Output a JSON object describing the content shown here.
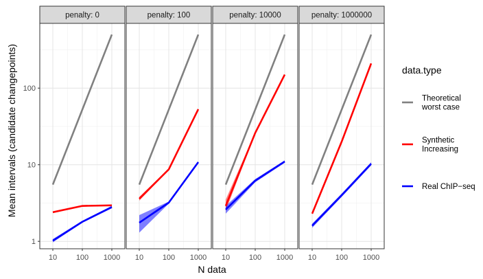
{
  "chart_data": {
    "type": "line",
    "xlabel": "N data",
    "ylabel": "Mean intervals (candidate changepoints)",
    "x_scale": "log10",
    "y_scale": "log10",
    "xlim": [
      10,
      1000
    ],
    "ylim": [
      0.8,
      700
    ],
    "x_ticks": [
      10,
      100,
      1000
    ],
    "x_tick_labels": [
      "10",
      "100",
      "1000"
    ],
    "y_ticks": [
      1,
      10,
      100
    ],
    "y_tick_labels": [
      "1",
      "10",
      "100"
    ],
    "grid": true,
    "legend_title": "data.type",
    "legend_position": "right",
    "series_meta": [
      {
        "name": "Theoretical worst case",
        "label_lines": [
          "Theoretical",
          "worst case"
        ],
        "color": "#808080"
      },
      {
        "name": "Synthetic Increasing",
        "label_lines": [
          "Synthetic",
          "Increasing"
        ],
        "color": "#ff0000"
      },
      {
        "name": "Real ChIP−seq",
        "label_lines": [
          "Real ChIP−seq"
        ],
        "color": "#0000ff"
      }
    ],
    "panels": [
      {
        "strip": "penalty: 0",
        "series": [
          {
            "name": "Theoretical worst case",
            "x": [
              10,
              1000
            ],
            "y": [
              5.5,
              500
            ]
          },
          {
            "name": "Synthetic Increasing",
            "x": [
              10,
              100,
              1000
            ],
            "y": [
              2.4,
              2.9,
              2.95
            ],
            "lo": [
              2.35,
              2.85,
              2.9
            ],
            "hi": [
              2.45,
              2.95,
              3.0
            ]
          },
          {
            "name": "Real ChIP−seq",
            "x": [
              10,
              100,
              1000
            ],
            "y": [
              1.02,
              1.8,
              2.8
            ],
            "lo": [
              0.97,
              1.75,
              2.7
            ],
            "hi": [
              1.07,
              1.85,
              2.9
            ]
          }
        ]
      },
      {
        "strip": "penalty: 100",
        "series": [
          {
            "name": "Theoretical worst case",
            "x": [
              10,
              1000
            ],
            "y": [
              5.5,
              500
            ]
          },
          {
            "name": "Synthetic Increasing",
            "x": [
              10,
              100,
              1000
            ],
            "y": [
              3.6,
              8.7,
              53
            ],
            "lo": [
              3.4,
              8.5,
              52
            ],
            "hi": [
              3.8,
              8.9,
              54
            ]
          },
          {
            "name": "Real ChIP−seq",
            "x": [
              10,
              100,
              1000
            ],
            "y": [
              1.75,
              3.2,
              10.8
            ],
            "lo": [
              1.3,
              3.1,
              10.5
            ],
            "hi": [
              2.2,
              3.3,
              11.1
            ]
          }
        ]
      },
      {
        "strip": "penalty: 10000",
        "series": [
          {
            "name": "Theoretical worst case",
            "x": [
              10,
              1000
            ],
            "y": [
              5.5,
              500
            ]
          },
          {
            "name": "Synthetic Increasing",
            "x": [
              10,
              100,
              1000
            ],
            "y": [
              2.9,
              26,
              150
            ],
            "lo": [
              2.5,
              25.5,
              148
            ],
            "hi": [
              3.5,
              26.5,
              152
            ]
          },
          {
            "name": "Real ChIP−seq",
            "x": [
              10,
              100,
              1000
            ],
            "y": [
              2.6,
              6.2,
              11.0
            ],
            "lo": [
              2.3,
              5.9,
              10.6
            ],
            "hi": [
              2.9,
              6.5,
              11.4
            ]
          }
        ]
      },
      {
        "strip": "penalty: 1000000",
        "series": [
          {
            "name": "Theoretical worst case",
            "x": [
              10,
              1000
            ],
            "y": [
              5.5,
              500
            ]
          },
          {
            "name": "Synthetic Increasing",
            "x": [
              10,
              100,
              1000
            ],
            "y": [
              2.3,
              20,
              210
            ],
            "lo": [
              2.25,
              19.7,
              207
            ],
            "hi": [
              2.35,
              20.3,
              213
            ]
          },
          {
            "name": "Real ChIP−seq",
            "x": [
              10,
              100,
              1000
            ],
            "y": [
              1.6,
              4.0,
              10.3
            ],
            "lo": [
              1.5,
              3.8,
              9.8
            ],
            "hi": [
              1.7,
              4.2,
              10.8
            ]
          }
        ]
      }
    ]
  }
}
